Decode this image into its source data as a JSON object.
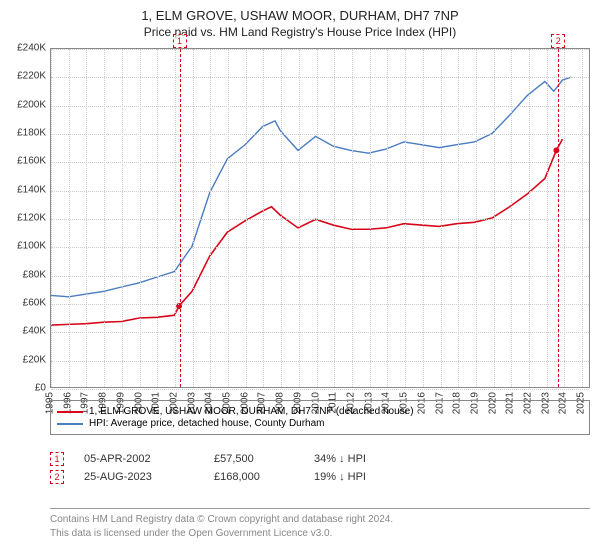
{
  "title": "1, ELM GROVE, USHAW MOOR, DURHAM, DH7 7NP",
  "subtitle": "Price paid vs. HM Land Registry's House Price Index (HPI)",
  "chart": {
    "type": "line",
    "background_color": "#ffffff",
    "grid_color": "#cccccc",
    "axis_color": "#888888",
    "label_fontsize": 10,
    "title_fontsize": 13,
    "xlim": [
      1995,
      2025.5
    ],
    "ylim": [
      0,
      240000
    ],
    "ytick_step": 20000,
    "yticks_labels": [
      "£0",
      "£20K",
      "£40K",
      "£60K",
      "£80K",
      "£100K",
      "£120K",
      "£140K",
      "£160K",
      "£180K",
      "£200K",
      "£220K",
      "£240K"
    ],
    "xticks": [
      1995,
      1996,
      1997,
      1998,
      1999,
      2000,
      2001,
      2002,
      2003,
      2004,
      2005,
      2006,
      2007,
      2008,
      2009,
      2010,
      2011,
      2012,
      2013,
      2014,
      2015,
      2016,
      2017,
      2018,
      2019,
      2020,
      2021,
      2022,
      2023,
      2024,
      2025
    ],
    "series": [
      {
        "id": "property",
        "label": "1, ELM GROVE, USHAW MOOR, DURHAM, DH7 7NP (detached house)",
        "color": "#d9061a",
        "line_width": 1.6,
        "points": [
          [
            1995,
            44000
          ],
          [
            1996,
            44500
          ],
          [
            1997,
            45000
          ],
          [
            1998,
            46000
          ],
          [
            1999,
            46500
          ],
          [
            2000,
            49000
          ],
          [
            2001,
            49500
          ],
          [
            2002,
            51000
          ],
          [
            2002.26,
            57500
          ],
          [
            2003,
            68000
          ],
          [
            2004,
            93000
          ],
          [
            2005,
            110000
          ],
          [
            2006,
            118000
          ],
          [
            2007,
            125000
          ],
          [
            2007.5,
            128000
          ],
          [
            2008,
            122000
          ],
          [
            2009,
            113000
          ],
          [
            2010,
            119000
          ],
          [
            2011,
            115000
          ],
          [
            2012,
            112000
          ],
          [
            2013,
            112000
          ],
          [
            2014,
            113000
          ],
          [
            2015,
            116000
          ],
          [
            2016,
            115000
          ],
          [
            2017,
            114000
          ],
          [
            2018,
            116000
          ],
          [
            2019,
            117000
          ],
          [
            2020,
            120000
          ],
          [
            2021,
            128000
          ],
          [
            2022,
            137000
          ],
          [
            2023,
            148000
          ],
          [
            2023.65,
            168000
          ],
          [
            2024,
            176000
          ]
        ]
      },
      {
        "id": "hpi",
        "label": "HPI: Average price, detached house, County Durham",
        "color": "#4a7cc2",
        "line_width": 1.4,
        "points": [
          [
            1995,
            65000
          ],
          [
            1996,
            64000
          ],
          [
            1997,
            66000
          ],
          [
            1998,
            68000
          ],
          [
            1999,
            71000
          ],
          [
            2000,
            74000
          ],
          [
            2001,
            78000
          ],
          [
            2002,
            82000
          ],
          [
            2003,
            100000
          ],
          [
            2004,
            138000
          ],
          [
            2005,
            162000
          ],
          [
            2006,
            172000
          ],
          [
            2007,
            185000
          ],
          [
            2007.7,
            189000
          ],
          [
            2008,
            182000
          ],
          [
            2009,
            168000
          ],
          [
            2010,
            178000
          ],
          [
            2011,
            171000
          ],
          [
            2012,
            168000
          ],
          [
            2013,
            166000
          ],
          [
            2014,
            169000
          ],
          [
            2015,
            174000
          ],
          [
            2016,
            172000
          ],
          [
            2017,
            170000
          ],
          [
            2018,
            172000
          ],
          [
            2019,
            174000
          ],
          [
            2020,
            180000
          ],
          [
            2021,
            193000
          ],
          [
            2022,
            207000
          ],
          [
            2023,
            217000
          ],
          [
            2023.5,
            210000
          ],
          [
            2024,
            218000
          ],
          [
            2024.5,
            220000
          ]
        ]
      }
    ],
    "markers": [
      {
        "n": "1",
        "x": 2002.26,
        "y": 57500,
        "color": "#d9061a"
      },
      {
        "n": "2",
        "x": 2023.65,
        "y": 168000,
        "color": "#d9061a"
      }
    ]
  },
  "legend": {
    "items": [
      {
        "color": "#d9061a",
        "text": "1, ELM GROVE, USHAW MOOR, DURHAM, DH7 7NP (detached house)"
      },
      {
        "color": "#4a7cc2",
        "text": "HPI: Average price, detached house, County Durham"
      }
    ]
  },
  "datapoints": [
    {
      "n": "1",
      "color": "#d9061a",
      "date": "05-APR-2002",
      "price": "£57,500",
      "pct": "34% ↓ HPI"
    },
    {
      "n": "2",
      "color": "#d9061a",
      "date": "25-AUG-2023",
      "price": "£168,000",
      "pct": "19% ↓ HPI"
    }
  ],
  "footer": {
    "line1": "Contains HM Land Registry data © Crown copyright and database right 2024.",
    "line2": "This data is licensed under the Open Government Licence v3.0."
  }
}
